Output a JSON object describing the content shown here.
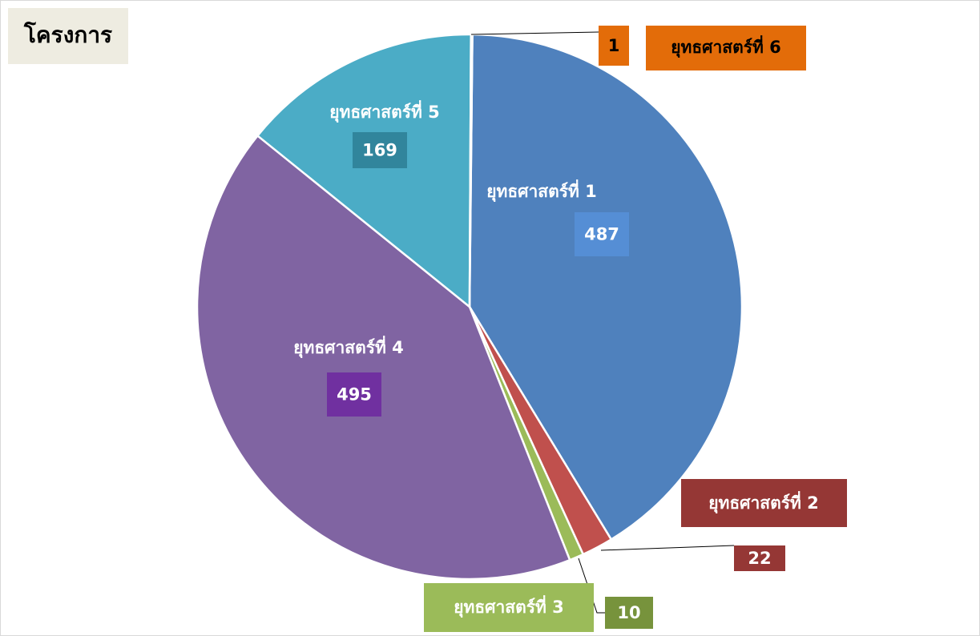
{
  "chart_data": {
    "type": "pie",
    "title": "โครงการ",
    "categories": [
      "ยุทธศาสตร์ที่ 1",
      "ยุทธศาสตร์ที่ 2",
      "ยุทธศาสตร์ที่ 3",
      "ยุทธศาสตร์ที่ 4",
      "ยุทธศาสตร์ที่ 5",
      "ยุทธศาสตร์ที่ 6"
    ],
    "values": [
      487,
      22,
      10,
      495,
      169,
      1
    ],
    "colors": [
      "#4f81bd",
      "#c0504d",
      "#9bbb59",
      "#8064a2",
      "#4bacc6",
      "#e36c09"
    ]
  }
}
